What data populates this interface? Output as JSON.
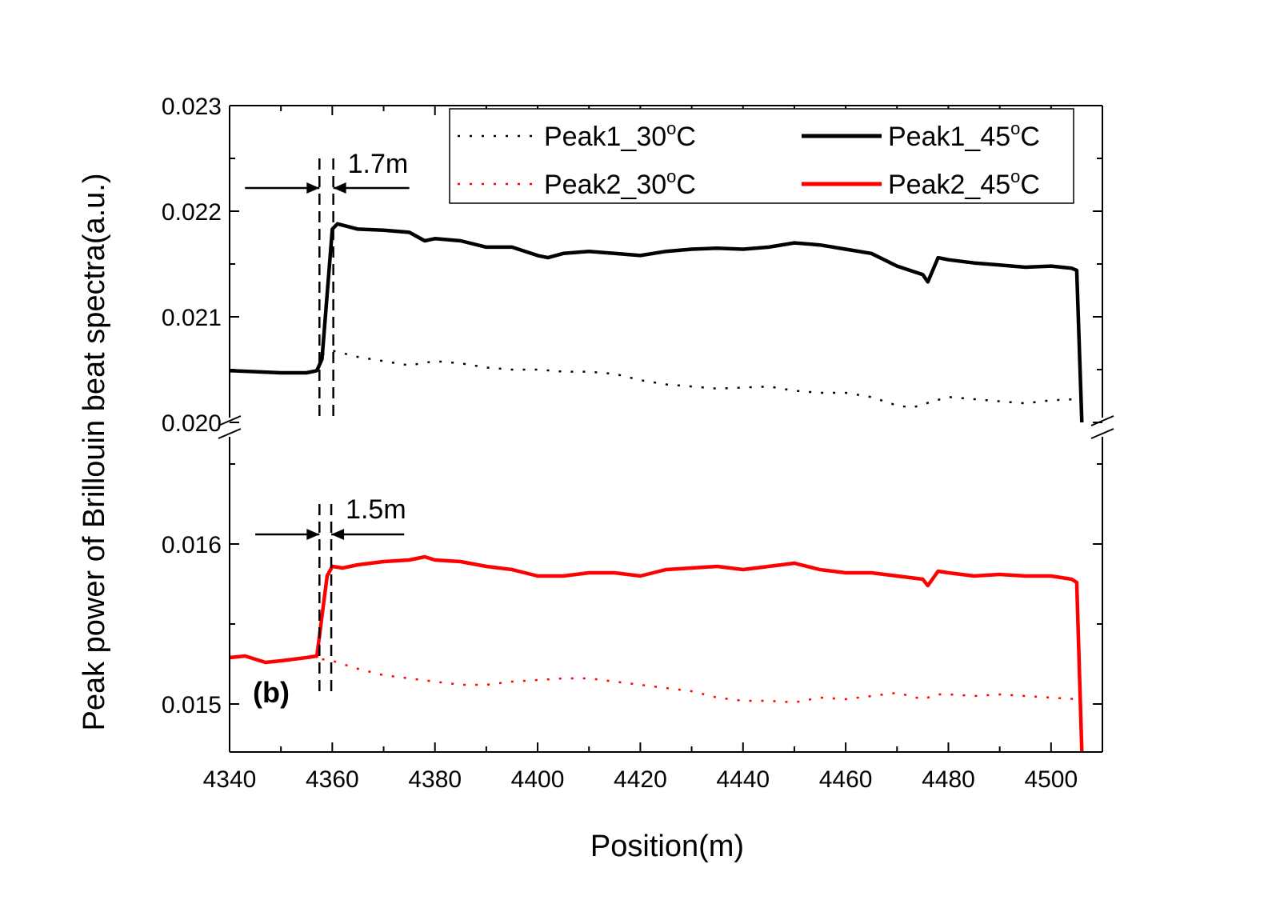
{
  "chart_data": {
    "type": "line",
    "panel_label": "(b)",
    "xlabel": "Position(m)",
    "ylabel": "Peak power of Brillouin beat spectra(a.u.)",
    "xlim": [
      4340,
      4510
    ],
    "x_ticks": [
      4340,
      4360,
      4380,
      4400,
      4420,
      4440,
      4460,
      4480,
      4500
    ],
    "x_tick_labels": [
      "4340",
      "4360",
      "4380",
      "4400",
      "4420",
      "4440",
      "4460",
      "4480",
      "4500"
    ],
    "y_axis_break": true,
    "y_segments": [
      {
        "ylim": [
          0.0147,
          0.0167
        ],
        "ticks": [
          0.015,
          0.016
        ],
        "tick_labels": [
          "0.015",
          "0.016"
        ]
      },
      {
        "ylim": [
          0.02,
          0.023
        ],
        "ticks": [
          0.02,
          0.021,
          0.022,
          0.023
        ],
        "tick_labels": [
          "0.020",
          "0.021",
          "0.022",
          "0.023"
        ]
      }
    ],
    "legend": {
      "placement": "top-right",
      "columns": 2
    },
    "series": [
      {
        "name": "Peak1_30",
        "name_sup": "o",
        "name_suffix": "C",
        "style": "dotted",
        "color": "#000000",
        "points": [
          [
            4358,
            0.02064
          ],
          [
            4360,
            0.02068
          ],
          [
            4365,
            0.02062
          ],
          [
            4370,
            0.02058
          ],
          [
            4375,
            0.02054
          ],
          [
            4380,
            0.02058
          ],
          [
            4385,
            0.02056
          ],
          [
            4390,
            0.02052
          ],
          [
            4395,
            0.0205
          ],
          [
            4400,
            0.0205
          ],
          [
            4405,
            0.02048
          ],
          [
            4410,
            0.02048
          ],
          [
            4415,
            0.02046
          ],
          [
            4420,
            0.0204
          ],
          [
            4425,
            0.02036
          ],
          [
            4430,
            0.02034
          ],
          [
            4435,
            0.02032
          ],
          [
            4440,
            0.02033
          ],
          [
            4445,
            0.02034
          ],
          [
            4450,
            0.0203
          ],
          [
            4455,
            0.02028
          ],
          [
            4460,
            0.02028
          ],
          [
            4465,
            0.02024
          ],
          [
            4470,
            0.02016
          ],
          [
            4473,
            0.02014
          ],
          [
            4477,
            0.0202
          ],
          [
            4480,
            0.02024
          ],
          [
            4485,
            0.02022
          ],
          [
            4490,
            0.0202
          ],
          [
            4495,
            0.02018
          ],
          [
            4500,
            0.02021
          ],
          [
            4505,
            0.02022
          ]
        ]
      },
      {
        "name": "Peak1_45",
        "name_sup": "o",
        "name_suffix": "C",
        "style": "solid",
        "color": "#000000",
        "points": [
          [
            4340,
            0.02049
          ],
          [
            4345,
            0.02048
          ],
          [
            4350,
            0.02047
          ],
          [
            4355,
            0.02047
          ],
          [
            4357,
            0.02049
          ],
          [
            4358,
            0.0206
          ],
          [
            4360,
            0.02183
          ],
          [
            4361,
            0.02188
          ],
          [
            4365,
            0.02183
          ],
          [
            4370,
            0.02182
          ],
          [
            4375,
            0.0218
          ],
          [
            4378,
            0.02172
          ],
          [
            4380,
            0.02174
          ],
          [
            4385,
            0.02172
          ],
          [
            4390,
            0.02166
          ],
          [
            4395,
            0.02166
          ],
          [
            4400,
            0.02158
          ],
          [
            4402,
            0.02156
          ],
          [
            4405,
            0.0216
          ],
          [
            4410,
            0.02162
          ],
          [
            4415,
            0.0216
          ],
          [
            4420,
            0.02158
          ],
          [
            4425,
            0.02162
          ],
          [
            4430,
            0.02164
          ],
          [
            4435,
            0.02165
          ],
          [
            4440,
            0.02164
          ],
          [
            4445,
            0.02166
          ],
          [
            4450,
            0.0217
          ],
          [
            4455,
            0.02168
          ],
          [
            4460,
            0.02164
          ],
          [
            4465,
            0.0216
          ],
          [
            4470,
            0.02148
          ],
          [
            4475,
            0.0214
          ],
          [
            4476,
            0.02133
          ],
          [
            4478,
            0.02156
          ],
          [
            4480,
            0.02154
          ],
          [
            4485,
            0.02151
          ],
          [
            4490,
            0.02149
          ],
          [
            4495,
            0.02147
          ],
          [
            4500,
            0.02148
          ],
          [
            4504,
            0.02146
          ],
          [
            4505,
            0.02144
          ],
          [
            4506,
            0.02
          ]
        ]
      },
      {
        "name": "Peak2_30",
        "name_sup": "o",
        "name_suffix": "C",
        "style": "dotted",
        "color": "#ff0000",
        "points": [
          [
            4358,
            0.01528
          ],
          [
            4360,
            0.01527
          ],
          [
            4365,
            0.01522
          ],
          [
            4370,
            0.01518
          ],
          [
            4375,
            0.01516
          ],
          [
            4380,
            0.01514
          ],
          [
            4385,
            0.01512
          ],
          [
            4390,
            0.01512
          ],
          [
            4395,
            0.01514
          ],
          [
            4400,
            0.01515
          ],
          [
            4405,
            0.01516
          ],
          [
            4410,
            0.01516
          ],
          [
            4415,
            0.01514
          ],
          [
            4420,
            0.01512
          ],
          [
            4425,
            0.0151
          ],
          [
            4430,
            0.01508
          ],
          [
            4435,
            0.01504
          ],
          [
            4440,
            0.01502
          ],
          [
            4445,
            0.01502
          ],
          [
            4450,
            0.01501
          ],
          [
            4455,
            0.01504
          ],
          [
            4460,
            0.01503
          ],
          [
            4465,
            0.01505
          ],
          [
            4470,
            0.01507
          ],
          [
            4475,
            0.01503
          ],
          [
            4478,
            0.01506
          ],
          [
            4480,
            0.01506
          ],
          [
            4485,
            0.01505
          ],
          [
            4490,
            0.01506
          ],
          [
            4495,
            0.01505
          ],
          [
            4500,
            0.01504
          ],
          [
            4505,
            0.01503
          ]
        ]
      },
      {
        "name": "Peak2_45",
        "name_sup": "o",
        "name_suffix": "C",
        "style": "solid",
        "color": "#ff0000",
        "points": [
          [
            4340,
            0.01529
          ],
          [
            4343,
            0.0153
          ],
          [
            4345,
            0.01528
          ],
          [
            4347,
            0.01526
          ],
          [
            4350,
            0.01527
          ],
          [
            4355,
            0.01529
          ],
          [
            4357,
            0.0153
          ],
          [
            4358,
            0.01555
          ],
          [
            4359,
            0.0158
          ],
          [
            4360,
            0.01586
          ],
          [
            4362,
            0.01585
          ],
          [
            4365,
            0.01587
          ],
          [
            4370,
            0.01589
          ],
          [
            4375,
            0.0159
          ],
          [
            4378,
            0.01592
          ],
          [
            4380,
            0.0159
          ],
          [
            4385,
            0.01589
          ],
          [
            4390,
            0.01586
          ],
          [
            4395,
            0.01584
          ],
          [
            4400,
            0.0158
          ],
          [
            4405,
            0.0158
          ],
          [
            4410,
            0.01582
          ],
          [
            4415,
            0.01582
          ],
          [
            4420,
            0.0158
          ],
          [
            4425,
            0.01584
          ],
          [
            4430,
            0.01585
          ],
          [
            4435,
            0.01586
          ],
          [
            4440,
            0.01584
          ],
          [
            4445,
            0.01586
          ],
          [
            4450,
            0.01588
          ],
          [
            4455,
            0.01584
          ],
          [
            4460,
            0.01582
          ],
          [
            4465,
            0.01582
          ],
          [
            4470,
            0.0158
          ],
          [
            4475,
            0.01578
          ],
          [
            4476,
            0.01574
          ],
          [
            4478,
            0.01583
          ],
          [
            4480,
            0.01582
          ],
          [
            4485,
            0.0158
          ],
          [
            4490,
            0.01581
          ],
          [
            4495,
            0.0158
          ],
          [
            4500,
            0.0158
          ],
          [
            4504,
            0.01578
          ],
          [
            4505,
            0.01576
          ],
          [
            4506,
            0.0147
          ]
        ]
      }
    ],
    "annotations": [
      {
        "text": "1.7m",
        "segment": "upper",
        "x_left": 4357.5,
        "x_right": 4360.2,
        "arrow_y": 0.02222,
        "y_top": 0.0225,
        "y_bottom": 0.02,
        "arrow_x_left": 4343,
        "arrow_x_right": 4375
      },
      {
        "text": "1.5m",
        "segment": "lower",
        "x_left": 4357.5,
        "x_right": 4359.8,
        "arrow_y": 0.01606,
        "y_top": 0.01625,
        "y_bottom": 0.01508,
        "arrow_x_left": 4345,
        "arrow_x_right": 4374
      }
    ]
  }
}
